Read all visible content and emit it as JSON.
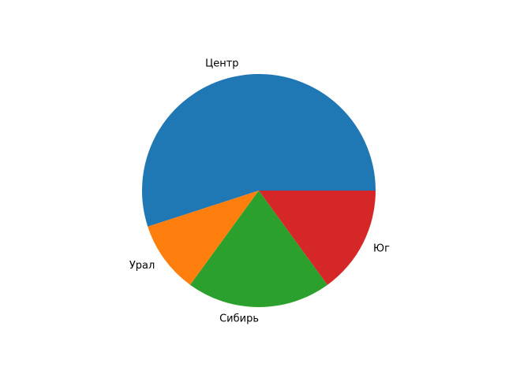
{
  "chart_data": {
    "type": "pie",
    "title": "",
    "categories": [
      "Центр",
      "Урал",
      "Сибирь",
      "Юг"
    ],
    "values": [
      55,
      10,
      20,
      15
    ],
    "colors": [
      "#1f77b4",
      "#ff7f0e",
      "#2ca02c",
      "#d62728"
    ],
    "start_angle_deg": 0,
    "direction": "counterclockwise",
    "legend": "none"
  }
}
